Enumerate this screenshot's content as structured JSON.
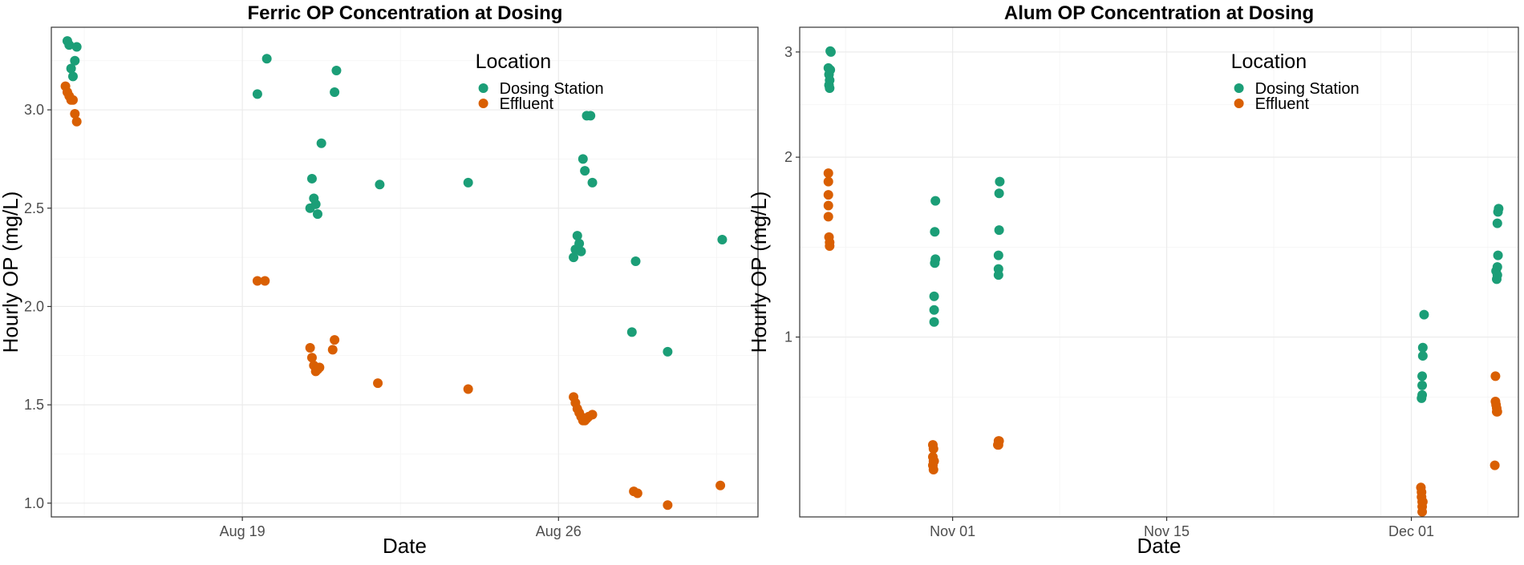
{
  "colors": {
    "Dosing Station": "#1b9e77",
    "Effluent": "#d95f02"
  },
  "legend": {
    "title": "Location",
    "items": [
      "Dosing Station",
      "Effluent"
    ]
  },
  "chart_data": [
    {
      "type": "scatter",
      "title": "Ferric OP Concentration at Dosing",
      "xlabel": "Date",
      "ylabel": "Hourly OP (mg/L)",
      "x_type": "date",
      "x_ticks": [
        {
          "date": "2023-08-19",
          "label": "Aug 19"
        },
        {
          "date": "2023-08-26",
          "label": "Aug 26"
        }
      ],
      "xlim": [
        "2023-08-14T18:30",
        "2023-08-30T10:00"
      ],
      "y_scale": "linear",
      "y_ticks": [
        1.0,
        1.5,
        2.0,
        2.5,
        3.0
      ],
      "y_tick_labels": [
        "1.0",
        "1.5",
        "2.0",
        "2.5",
        "3.0"
      ],
      "ylim": [
        0.93,
        3.42
      ],
      "legend_position": "top-right",
      "grid": true,
      "series": [
        {
          "name": "Dosing Station",
          "points": [
            [
              "2023-08-15T03:00",
              3.35
            ],
            [
              "2023-08-15T04:00",
              3.33
            ],
            [
              "2023-08-15T05:00",
              3.21
            ],
            [
              "2023-08-15T06:00",
              3.17
            ],
            [
              "2023-08-15T07:00",
              3.25
            ],
            [
              "2023-08-15T08:00",
              3.32
            ],
            [
              "2023-08-19T08:00",
              3.08
            ],
            [
              "2023-08-19T13:00",
              3.26
            ],
            [
              "2023-08-20T13:00",
              2.65
            ],
            [
              "2023-08-20T14:00",
              2.55
            ],
            [
              "2023-08-20T12:00",
              2.5
            ],
            [
              "2023-08-20T15:00",
              2.52
            ],
            [
              "2023-08-20T16:00",
              2.47
            ],
            [
              "2023-08-20T18:00",
              2.83
            ],
            [
              "2023-08-21T01:00",
              3.09
            ],
            [
              "2023-08-21T02:00",
              3.2
            ],
            [
              "2023-08-22T01:00",
              2.62
            ],
            [
              "2023-08-24T00:00",
              2.63
            ],
            [
              "2023-08-26T08:00",
              2.25
            ],
            [
              "2023-08-26T09:00",
              2.29
            ],
            [
              "2023-08-26T10:00",
              2.36
            ],
            [
              "2023-08-26T11:00",
              2.32
            ],
            [
              "2023-08-26T12:00",
              2.28
            ],
            [
              "2023-08-26T13:00",
              2.75
            ],
            [
              "2023-08-26T14:00",
              2.69
            ],
            [
              "2023-08-26T15:00",
              2.97
            ],
            [
              "2023-08-26T17:00",
              2.97
            ],
            [
              "2023-08-26T18:00",
              2.63
            ],
            [
              "2023-08-27T15:00",
              1.87
            ],
            [
              "2023-08-27T17:00",
              2.23
            ],
            [
              "2023-08-28T10:00",
              1.77
            ],
            [
              "2023-08-29T15:00",
              2.34
            ]
          ]
        },
        {
          "name": "Effluent",
          "points": [
            [
              "2023-08-15T02:00",
              3.12
            ],
            [
              "2023-08-15T03:00",
              3.09
            ],
            [
              "2023-08-15T04:00",
              3.07
            ],
            [
              "2023-08-15T05:00",
              3.05
            ],
            [
              "2023-08-15T06:00",
              3.05
            ],
            [
              "2023-08-15T07:00",
              2.98
            ],
            [
              "2023-08-15T08:00",
              2.94
            ],
            [
              "2023-08-19T08:00",
              2.13
            ],
            [
              "2023-08-19T12:00",
              2.13
            ],
            [
              "2023-08-20T12:00",
              1.79
            ],
            [
              "2023-08-20T13:00",
              1.74
            ],
            [
              "2023-08-20T14:00",
              1.7
            ],
            [
              "2023-08-20T15:00",
              1.67
            ],
            [
              "2023-08-20T16:00",
              1.68
            ],
            [
              "2023-08-20T17:00",
              1.69
            ],
            [
              "2023-08-21T00:00",
              1.78
            ],
            [
              "2023-08-21T01:00",
              1.83
            ],
            [
              "2023-08-22T00:00",
              1.61
            ],
            [
              "2023-08-24T00:00",
              1.58
            ],
            [
              "2023-08-26T08:00",
              1.54
            ],
            [
              "2023-08-26T09:00",
              1.51
            ],
            [
              "2023-08-26T10:00",
              1.48
            ],
            [
              "2023-08-26T11:00",
              1.46
            ],
            [
              "2023-08-26T12:00",
              1.44
            ],
            [
              "2023-08-26T13:00",
              1.42
            ],
            [
              "2023-08-26T14:00",
              1.42
            ],
            [
              "2023-08-26T15:00",
              1.43
            ],
            [
              "2023-08-26T16:00",
              1.44
            ],
            [
              "2023-08-26T18:00",
              1.45
            ],
            [
              "2023-08-27T16:00",
              1.06
            ],
            [
              "2023-08-27T18:00",
              1.05
            ],
            [
              "2023-08-28T10:00",
              0.99
            ],
            [
              "2023-08-29T14:00",
              1.09
            ]
          ]
        }
      ]
    },
    {
      "type": "scatter",
      "title": "Alum OP Concentration at Dosing",
      "xlabel": "Date",
      "ylabel": "Hourly OP (mg/L)",
      "x_type": "date",
      "x_ticks": [
        {
          "date": "2023-11-01",
          "label": "Nov 01"
        },
        {
          "date": "2023-11-15",
          "label": "Nov 15"
        },
        {
          "date": "2023-12-01",
          "label": "Dec 01"
        }
      ],
      "xlim": [
        "2023-10-22T00:00",
        "2023-12-08T00:00"
      ],
      "y_scale": "log",
      "y_ticks": [
        1,
        2,
        3
      ],
      "y_tick_labels": [
        "1",
        "2",
        "3"
      ],
      "ylim": [
        0.5,
        3.3
      ],
      "legend_position": "top-right",
      "grid": true,
      "series": [
        {
          "name": "Dosing Station",
          "points": [
            [
              "2023-10-24T00:00",
              3.01
            ],
            [
              "2023-10-24T01:00",
              3.0
            ],
            [
              "2023-10-23T21:00",
              2.82
            ],
            [
              "2023-10-23T22:00",
              2.75
            ],
            [
              "2023-10-24T00:00",
              2.8
            ],
            [
              "2023-10-23T23:00",
              2.69
            ],
            [
              "2023-10-23T22:00",
              2.64
            ],
            [
              "2023-10-23T23:00",
              2.61
            ],
            [
              "2023-10-30T21:00",
              1.69
            ],
            [
              "2023-10-30T20:00",
              1.5
            ],
            [
              "2023-10-30T21:00",
              1.35
            ],
            [
              "2023-10-30T20:00",
              1.33
            ],
            [
              "2023-10-30T19:00",
              1.17
            ],
            [
              "2023-10-30T19:00",
              1.11
            ],
            [
              "2023-10-30T19:00",
              1.06
            ],
            [
              "2023-11-04T02:00",
              1.82
            ],
            [
              "2023-11-04T01:00",
              1.74
            ],
            [
              "2023-11-04T01:00",
              1.51
            ],
            [
              "2023-11-04T00:00",
              1.37
            ],
            [
              "2023-11-04T00:00",
              1.3
            ],
            [
              "2023-11-04T00:00",
              1.27
            ],
            [
              "2023-12-01T20:00",
              1.09
            ],
            [
              "2023-12-01T18:00",
              0.96
            ],
            [
              "2023-12-01T18:00",
              0.93
            ],
            [
              "2023-12-01T17:00",
              0.86
            ],
            [
              "2023-12-01T17:00",
              0.83
            ],
            [
              "2023-12-01T17:00",
              0.8
            ],
            [
              "2023-12-01T16:00",
              0.79
            ],
            [
              "2023-12-06T17:00",
              1.64
            ],
            [
              "2023-12-06T16:00",
              1.62
            ],
            [
              "2023-12-06T15:00",
              1.55
            ],
            [
              "2023-12-06T16:00",
              1.37
            ],
            [
              "2023-12-06T15:00",
              1.31
            ],
            [
              "2023-12-06T13:00",
              1.29
            ],
            [
              "2023-12-06T15:00",
              1.27
            ],
            [
              "2023-12-06T14:00",
              1.25
            ]
          ]
        },
        {
          "name": "Effluent",
          "points": [
            [
              "2023-10-23T21:00",
              1.88
            ],
            [
              "2023-10-23T21:00",
              1.82
            ],
            [
              "2023-10-23T21:00",
              1.73
            ],
            [
              "2023-10-23T21:00",
              1.66
            ],
            [
              "2023-10-23T21:00",
              1.59
            ],
            [
              "2023-10-23T22:00",
              1.47
            ],
            [
              "2023-10-23T23:00",
              1.44
            ],
            [
              "2023-10-23T23:00",
              1.42
            ],
            [
              "2023-10-30T17:00",
              0.66
            ],
            [
              "2023-10-30T18:00",
              0.65
            ],
            [
              "2023-10-30T17:00",
              0.63
            ],
            [
              "2023-10-30T18:00",
              0.62
            ],
            [
              "2023-10-30T19:00",
              0.62
            ],
            [
              "2023-10-30T17:00",
              0.61
            ],
            [
              "2023-10-30T18:00",
              0.6
            ],
            [
              "2023-11-04T00:00",
              0.67
            ],
            [
              "2023-11-04T01:00",
              0.67
            ],
            [
              "2023-11-04T00:00",
              0.66
            ],
            [
              "2023-11-03T23:00",
              0.66
            ],
            [
              "2023-12-01T15:00",
              0.56
            ],
            [
              "2023-12-01T16:00",
              0.55
            ],
            [
              "2023-12-01T16:00",
              0.54
            ],
            [
              "2023-12-01T17:00",
              0.53
            ],
            [
              "2023-12-01T18:00",
              0.53
            ],
            [
              "2023-12-01T17:00",
              0.52
            ],
            [
              "2023-12-01T17:00",
              0.51
            ],
            [
              "2023-12-06T12:00",
              0.86
            ],
            [
              "2023-12-06T12:00",
              0.78
            ],
            [
              "2023-12-06T13:00",
              0.77
            ],
            [
              "2023-12-06T14:00",
              0.76
            ],
            [
              "2023-12-06T14:00",
              0.75
            ],
            [
              "2023-12-06T15:00",
              0.75
            ],
            [
              "2023-12-06T11:00",
              0.61
            ]
          ]
        }
      ]
    }
  ]
}
